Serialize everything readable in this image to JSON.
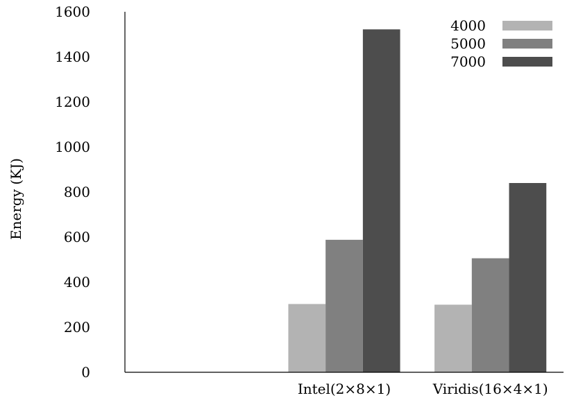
{
  "chart_data": {
    "type": "bar",
    "title": "",
    "xlabel": "",
    "ylabel": "Energy (KJ)",
    "ylim": [
      0,
      1600
    ],
    "yticks": [
      0,
      200,
      400,
      600,
      800,
      1000,
      1200,
      1400,
      1600
    ],
    "categories": [
      "",
      "Intel(2×8×1)",
      "Viridis(16×4×1)"
    ],
    "series": [
      {
        "name": "4000",
        "color": "#b3b3b3",
        "values": [
          null,
          303,
          300
        ]
      },
      {
        "name": "5000",
        "color": "#808080",
        "values": [
          null,
          588,
          506
        ]
      },
      {
        "name": "7000",
        "color": "#4d4d4d",
        "values": [
          null,
          1522,
          840
        ]
      }
    ],
    "grid": false,
    "legend": "top-right"
  }
}
